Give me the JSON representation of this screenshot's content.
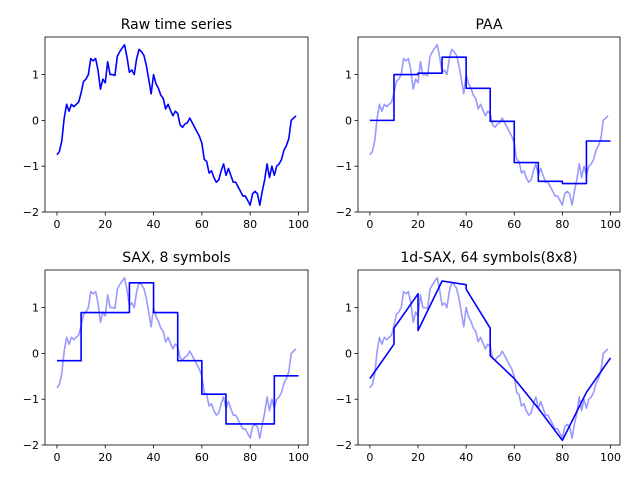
{
  "chart_data": [
    {
      "type": "line",
      "title": "Raw time series",
      "xlim": [
        -4.95,
        103.95
      ],
      "ylim": [
        -2.0,
        1.82
      ],
      "xticks": [
        0,
        20,
        40,
        60,
        80,
        100
      ],
      "yticks": [
        -2,
        -1,
        0,
        1
      ],
      "series": [
        {
          "role": "raw",
          "color": "#0000ff",
          "opacity": 1.0,
          "x": [
            0,
            1,
            2,
            3,
            4,
            5,
            6,
            7,
            8,
            9,
            10,
            11,
            12,
            13,
            14,
            15,
            16,
            17,
            18,
            19,
            20,
            21,
            22,
            23,
            24,
            25,
            26,
            27,
            28,
            29,
            30,
            31,
            32,
            33,
            34,
            35,
            36,
            37,
            38,
            39,
            40,
            41,
            42,
            43,
            44,
            45,
            46,
            47,
            48,
            49,
            50,
            51,
            52,
            53,
            54,
            55,
            56,
            57,
            58,
            59,
            60,
            61,
            62,
            63,
            64,
            65,
            66,
            67,
            68,
            69,
            70,
            71,
            72,
            73,
            74,
            75,
            76,
            77,
            78,
            79,
            80,
            81,
            82,
            83,
            84,
            85,
            86,
            87,
            88,
            89,
            90,
            91,
            92,
            93,
            94,
            95,
            96,
            97,
            98,
            99
          ],
          "y": [
            -0.75,
            -0.68,
            -0.45,
            0.05,
            0.35,
            0.2,
            0.35,
            0.3,
            0.35,
            0.4,
            0.6,
            0.85,
            0.9,
            1.0,
            1.35,
            1.3,
            1.35,
            1.1,
            0.68,
            0.9,
            0.82,
            1.28,
            1.0,
            1.0,
            0.98,
            1.4,
            1.5,
            1.58,
            1.65,
            1.38,
            1.05,
            1.1,
            1.0,
            1.35,
            1.55,
            1.5,
            1.42,
            1.2,
            0.9,
            0.58,
            1.0,
            0.8,
            0.7,
            0.55,
            0.48,
            0.25,
            0.35,
            0.22,
            0.1,
            0.2,
            0.15,
            -0.1,
            -0.15,
            -0.08,
            -0.05,
            0.05,
            -0.05,
            -0.15,
            -0.25,
            -0.35,
            -0.5,
            -0.85,
            -0.9,
            -1.15,
            -1.1,
            -1.25,
            -1.35,
            -1.3,
            -1.1,
            -0.95,
            -1.2,
            -1.05,
            -1.2,
            -1.35,
            -1.35,
            -1.45,
            -1.55,
            -1.65,
            -1.65,
            -1.75,
            -1.85,
            -1.6,
            -1.55,
            -1.6,
            -1.85,
            -1.55,
            -1.3,
            -0.95,
            -1.25,
            -1.0,
            -1.2,
            -1.0,
            -0.95,
            -0.85,
            -0.65,
            -0.55,
            -0.4,
            0.0,
            0.05,
            0.1
          ]
        }
      ]
    },
    {
      "type": "line",
      "title": "PAA",
      "xlim": [
        -4.95,
        103.95
      ],
      "ylim": [
        -2.0,
        1.82
      ],
      "xticks": [
        0,
        20,
        40,
        60,
        80,
        100
      ],
      "yticks": [
        -2,
        -1,
        0,
        1
      ],
      "series": [
        {
          "role": "raw",
          "color": "#0000ff",
          "opacity": 0.4,
          "source": "raw"
        },
        {
          "role": "approx",
          "color": "#0000ff",
          "opacity": 1.0,
          "steps": true,
          "segments": [
            [
              0,
              10,
              0.0
            ],
            [
              10,
              20,
              1.0
            ],
            [
              20,
              30,
              1.03
            ],
            [
              30,
              40,
              1.38
            ],
            [
              40,
              50,
              0.7
            ],
            [
              50,
              60,
              -0.02
            ],
            [
              60,
              70,
              -0.92
            ],
            [
              70,
              80,
              -1.33
            ],
            [
              80,
              90,
              -1.38
            ],
            [
              90,
              100,
              -0.45
            ]
          ]
        }
      ]
    },
    {
      "type": "line",
      "title": "SAX, 8 symbols",
      "xlim": [
        -4.95,
        103.95
      ],
      "ylim": [
        -2.0,
        1.82
      ],
      "xticks": [
        0,
        20,
        40,
        60,
        80,
        100
      ],
      "yticks": [
        -2,
        -1,
        0,
        1
      ],
      "series": [
        {
          "role": "raw",
          "color": "#0000ff",
          "opacity": 0.4,
          "source": "raw"
        },
        {
          "role": "approx",
          "color": "#0000ff",
          "opacity": 1.0,
          "steps": true,
          "segments": [
            [
              0,
              10,
              -0.16
            ],
            [
              10,
              20,
              0.89
            ],
            [
              20,
              30,
              0.89
            ],
            [
              30,
              40,
              1.54
            ],
            [
              40,
              50,
              0.89
            ],
            [
              50,
              60,
              -0.16
            ],
            [
              60,
              70,
              -0.89
            ],
            [
              70,
              80,
              -1.54
            ],
            [
              80,
              90,
              -1.54
            ],
            [
              90,
              100,
              -0.49
            ]
          ]
        }
      ]
    },
    {
      "type": "line",
      "title": "1d-SAX, 64 symbols(8x8)",
      "xlim": [
        -4.95,
        103.95
      ],
      "ylim": [
        -2.0,
        1.82
      ],
      "xticks": [
        0,
        20,
        40,
        60,
        80,
        100
      ],
      "yticks": [
        -2,
        -1,
        0,
        1
      ],
      "series": [
        {
          "role": "raw",
          "color": "#0000ff",
          "opacity": 0.4,
          "source": "raw"
        },
        {
          "role": "approx",
          "color": "#0000ff",
          "opacity": 1.0,
          "steps": false,
          "segments": [
            [
              0,
              10,
              -0.55,
              0.2
            ],
            [
              10,
              20,
              0.55,
              1.3
            ],
            [
              20,
              30,
              0.5,
              1.58
            ],
            [
              30,
              40,
              1.58,
              1.5
            ],
            [
              40,
              50,
              1.4,
              0.55
            ],
            [
              50,
              60,
              -0.05,
              -0.55
            ],
            [
              60,
              70,
              -0.55,
              -1.2
            ],
            [
              70,
              80,
              -1.2,
              -1.9
            ],
            [
              80,
              90,
              -1.9,
              -0.85
            ],
            [
              90,
              100,
              -0.85,
              -0.1
            ]
          ]
        }
      ]
    }
  ]
}
